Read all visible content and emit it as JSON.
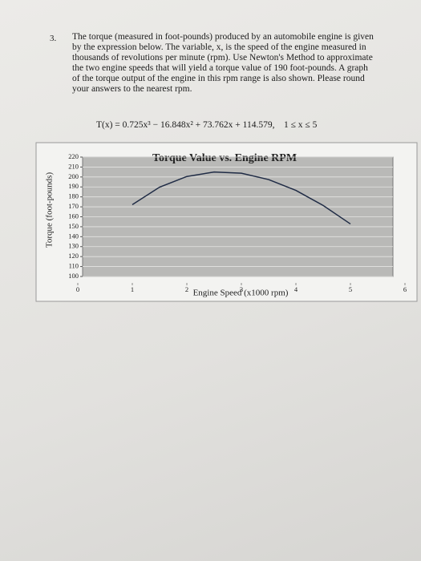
{
  "problem": {
    "number": "3.",
    "lines": [
      "The torque (measured in foot-pounds) produced by an automobile engine is given",
      "by the expression below. The variable, x, is the speed of the engine measured in",
      "thousands of revolutions per minute (rpm). Use Newton's Method to approximate",
      "the two engine speeds that will yield a torque value of 190 foot-pounds. A graph",
      "of the torque output of the engine in this rpm range is also shown. Please round",
      "your answers to the nearest rpm."
    ],
    "formula": "T(x) = 0.725x³ − 16.848x² + 73.762x + 114.579,",
    "domain": "1 ≤ x ≤ 5"
  },
  "chart": {
    "type": "line",
    "title": "Torque Value vs. Engine RPM",
    "x_label": "Engine Speed (x1000 rpm)",
    "y_label": "Torque (foot-pounds)",
    "x": [
      1,
      1.5,
      2,
      2.5,
      3,
      3.5,
      4,
      4.5,
      5
    ],
    "values": [
      172.2,
      189.8,
      200.5,
      205.0,
      203.8,
      197.4,
      186.5,
      171.4,
      152.8
    ],
    "color": "#1f2b45",
    "xlim": [
      0,
      6
    ],
    "xticks": [
      0,
      1,
      2,
      3,
      4,
      5,
      6
    ],
    "ylim": [
      100,
      220
    ],
    "yticks": [
      100,
      110,
      120,
      130,
      140,
      150,
      160,
      170,
      180,
      190,
      200,
      210,
      220
    ],
    "grid": true
  }
}
